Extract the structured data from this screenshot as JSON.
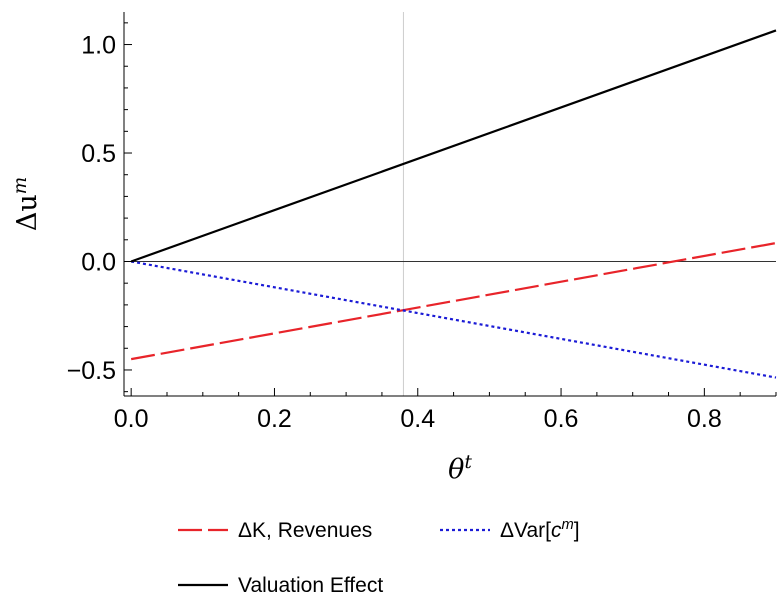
{
  "chart_data": {
    "type": "line",
    "title": "",
    "xlabel": {
      "base": "θ",
      "sup": "t"
    },
    "ylabel": {
      "base": "Δu",
      "sup": "m"
    },
    "xlim": [
      -0.01,
      0.9
    ],
    "ylim": [
      -0.62,
      1.15
    ],
    "x_ticks": [
      0.0,
      0.2,
      0.4,
      0.6,
      0.8
    ],
    "x_tick_labels": [
      "0.0",
      "0.2",
      "0.4",
      "0.6",
      "0.8"
    ],
    "y_ticks": [
      -0.5,
      0.0,
      0.5,
      1.0
    ],
    "y_tick_labels": [
      "−0.5",
      "0.0",
      "0.5",
      "1.0"
    ],
    "vertical_reference_x": 0.38,
    "horizontal_reference_y": 0.0,
    "grid": false,
    "legend_position": "bottom",
    "series": [
      {
        "name": "ΔK, Revenues",
        "color": "#e8242a",
        "style": "dashed",
        "x": [
          0.0,
          0.9
        ],
        "values": [
          -0.45,
          0.085
        ]
      },
      {
        "name": "ΔVar[c",
        "name_sup": "m",
        "name_suffix": "]",
        "color": "#1b1bd6",
        "style": "dotted",
        "x": [
          0.0,
          0.9
        ],
        "values": [
          0.0,
          -0.535
        ]
      },
      {
        "name": "Valuation Effect",
        "color": "#000000",
        "style": "solid",
        "x": [
          0.0,
          0.9
        ],
        "values": [
          0.0,
          1.065
        ]
      }
    ]
  }
}
